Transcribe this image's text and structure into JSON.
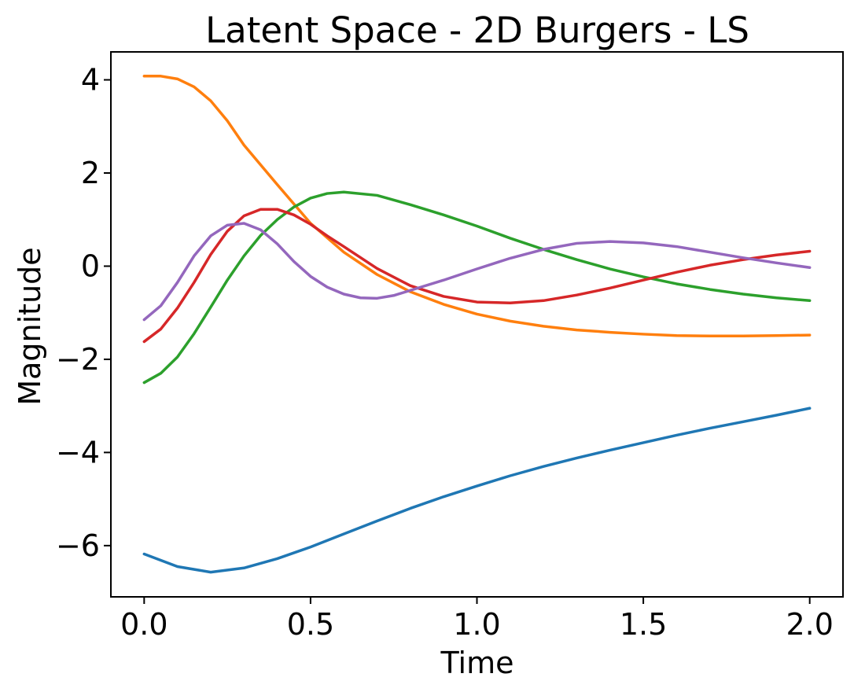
{
  "chart_data": {
    "type": "line",
    "title": "Latent Space - 2D Burgers - LS",
    "xlabel": "Time",
    "ylabel": "Magnitude",
    "xlim": [
      -0.1,
      2.1
    ],
    "ylim": [
      -7.1,
      4.6
    ],
    "xticks": [
      0.0,
      0.5,
      1.0,
      1.5,
      2.0
    ],
    "xtick_labels": [
      "0.0",
      "0.5",
      "1.0",
      "1.5",
      "2.0"
    ],
    "yticks": [
      -6,
      -4,
      -2,
      0,
      2,
      4
    ],
    "ytick_labels": [
      "−6",
      "−4",
      "−2",
      "0",
      "2",
      "4"
    ],
    "grid": false,
    "legend": "none",
    "series": [
      {
        "color": "#1f77b4",
        "x": [
          0.0,
          0.1,
          0.2,
          0.3,
          0.4,
          0.5,
          0.6,
          0.7,
          0.8,
          0.9,
          1.0,
          1.1,
          1.2,
          1.3,
          1.4,
          1.5,
          1.6,
          1.7,
          1.8,
          1.9,
          2.0
        ],
        "y": [
          -6.18,
          -6.45,
          -6.57,
          -6.48,
          -6.28,
          -6.03,
          -5.75,
          -5.47,
          -5.2,
          -4.95,
          -4.72,
          -4.5,
          -4.3,
          -4.12,
          -3.95,
          -3.79,
          -3.63,
          -3.48,
          -3.34,
          -3.2,
          -3.05
        ]
      },
      {
        "color": "#ff7f0e",
        "x": [
          0.0,
          0.05,
          0.1,
          0.15,
          0.2,
          0.25,
          0.3,
          0.4,
          0.5,
          0.6,
          0.7,
          0.8,
          0.9,
          1.0,
          1.1,
          1.2,
          1.3,
          1.4,
          1.5,
          1.6,
          1.7,
          1.8,
          1.9,
          2.0
        ],
        "y": [
          4.08,
          4.08,
          4.02,
          3.85,
          3.55,
          3.12,
          2.6,
          1.75,
          0.92,
          0.3,
          -0.18,
          -0.55,
          -0.82,
          -1.03,
          -1.18,
          -1.29,
          -1.37,
          -1.42,
          -1.46,
          -1.49,
          -1.5,
          -1.5,
          -1.49,
          -1.48
        ]
      },
      {
        "color": "#2ca02c",
        "x": [
          0.0,
          0.05,
          0.1,
          0.15,
          0.2,
          0.25,
          0.3,
          0.35,
          0.4,
          0.45,
          0.5,
          0.55,
          0.6,
          0.7,
          0.8,
          0.9,
          1.0,
          1.1,
          1.2,
          1.3,
          1.4,
          1.5,
          1.6,
          1.7,
          1.8,
          1.9,
          2.0
        ],
        "y": [
          -2.5,
          -2.3,
          -1.95,
          -1.45,
          -0.88,
          -0.3,
          0.22,
          0.66,
          1.0,
          1.27,
          1.46,
          1.56,
          1.59,
          1.52,
          1.32,
          1.1,
          0.86,
          0.6,
          0.36,
          0.14,
          -0.06,
          -0.23,
          -0.38,
          -0.5,
          -0.6,
          -0.68,
          -0.74
        ]
      },
      {
        "color": "#d62728",
        "x": [
          0.0,
          0.05,
          0.1,
          0.15,
          0.2,
          0.25,
          0.3,
          0.35,
          0.4,
          0.45,
          0.5,
          0.55,
          0.6,
          0.7,
          0.8,
          0.9,
          1.0,
          1.1,
          1.2,
          1.3,
          1.4,
          1.5,
          1.6,
          1.7,
          1.8,
          1.9,
          2.0
        ],
        "y": [
          -1.62,
          -1.35,
          -0.9,
          -0.35,
          0.25,
          0.75,
          1.08,
          1.22,
          1.22,
          1.1,
          0.9,
          0.65,
          0.42,
          -0.05,
          -0.42,
          -0.65,
          -0.77,
          -0.79,
          -0.74,
          -0.62,
          -0.47,
          -0.3,
          -0.13,
          0.02,
          0.14,
          0.24,
          0.32
        ]
      },
      {
        "color": "#9467bd",
        "x": [
          0.0,
          0.05,
          0.1,
          0.15,
          0.2,
          0.25,
          0.3,
          0.35,
          0.4,
          0.45,
          0.5,
          0.55,
          0.6,
          0.65,
          0.7,
          0.75,
          0.8,
          0.9,
          1.0,
          1.1,
          1.2,
          1.3,
          1.4,
          1.5,
          1.6,
          1.7,
          1.8,
          1.9,
          2.0
        ],
        "y": [
          -1.15,
          -0.85,
          -0.35,
          0.22,
          0.65,
          0.88,
          0.92,
          0.78,
          0.48,
          0.1,
          -0.22,
          -0.45,
          -0.6,
          -0.68,
          -0.69,
          -0.63,
          -0.52,
          -0.3,
          -0.06,
          0.17,
          0.36,
          0.49,
          0.53,
          0.5,
          0.42,
          0.3,
          0.18,
          0.07,
          -0.03
        ]
      }
    ]
  }
}
